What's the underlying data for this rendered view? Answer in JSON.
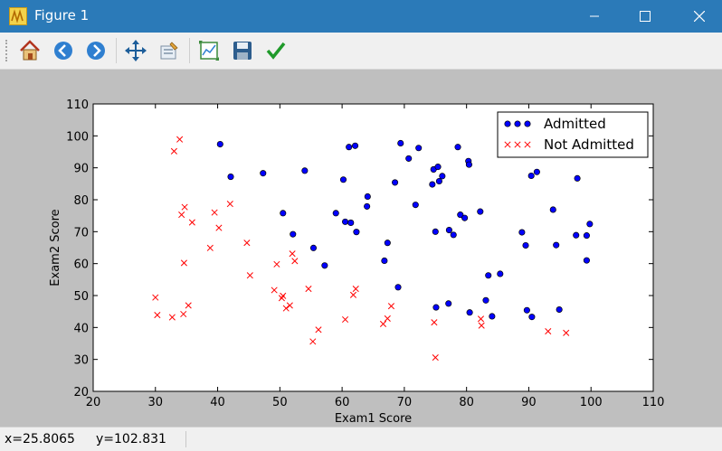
{
  "window": {
    "title": "Figure 1",
    "controls": [
      "minimize",
      "maximize",
      "close"
    ]
  },
  "toolbar": {
    "items": [
      {
        "name": "home-icon",
        "action": "Home"
      },
      {
        "name": "back-icon",
        "action": "Back"
      },
      {
        "name": "forward-icon",
        "action": "Forward"
      },
      {
        "name": "pan-icon",
        "action": "Pan"
      },
      {
        "name": "zoom-icon",
        "action": "Zoom"
      },
      {
        "name": "subplots-icon",
        "action": "Configure subplots"
      },
      {
        "name": "save-icon",
        "action": "Save"
      },
      {
        "name": "edit-icon",
        "action": "Edit axis"
      }
    ]
  },
  "status": {
    "x": "x=25.8065",
    "y": "y=102.831"
  },
  "colors": {
    "titlebar": "#2b7ab8",
    "admitted_fill": "#0000ff",
    "not_admitted": "#ff0000",
    "figure_bg": "#bfbfbf"
  },
  "chart_data": {
    "type": "scatter",
    "xlabel": "Exam1 Score",
    "ylabel": "Exam2 Score",
    "xlim": [
      20,
      110
    ],
    "ylim": [
      20,
      110
    ],
    "xticks": [
      20,
      30,
      40,
      50,
      60,
      70,
      80,
      90,
      100,
      110
    ],
    "yticks": [
      20,
      30,
      40,
      50,
      60,
      70,
      80,
      90,
      100,
      110
    ],
    "legend": {
      "position": "top-right"
    },
    "series": [
      {
        "name": "Admitted",
        "marker": "circle",
        "color": "#0000ff",
        "points": [
          [
            40.4,
            97.4
          ],
          [
            42.1,
            87.2
          ],
          [
            47.3,
            88.3
          ],
          [
            50.5,
            75.8
          ],
          [
            52.1,
            69.2
          ],
          [
            54.0,
            89.1
          ],
          [
            55.4,
            64.9
          ],
          [
            57.2,
            59.4
          ],
          [
            59.0,
            75.8
          ],
          [
            60.2,
            86.3
          ],
          [
            60.5,
            73.1
          ],
          [
            61.1,
            96.5
          ],
          [
            61.4,
            72.8
          ],
          [
            62.1,
            96.9
          ],
          [
            62.3,
            69.9
          ],
          [
            64.0,
            77.9
          ],
          [
            64.1,
            81.0
          ],
          [
            66.8,
            60.9
          ],
          [
            67.3,
            66.5
          ],
          [
            68.5,
            85.4
          ],
          [
            69.0,
            52.6
          ],
          [
            69.4,
            97.7
          ],
          [
            70.7,
            92.9
          ],
          [
            71.8,
            78.4
          ],
          [
            72.3,
            96.2
          ],
          [
            74.5,
            84.8
          ],
          [
            74.7,
            89.5
          ],
          [
            75.0,
            70.0
          ],
          [
            75.1,
            46.3
          ],
          [
            75.4,
            90.3
          ],
          [
            75.6,
            85.8
          ],
          [
            76.1,
            87.4
          ],
          [
            77.1,
            47.5
          ],
          [
            77.2,
            70.5
          ],
          [
            77.9,
            69.0
          ],
          [
            78.6,
            96.5
          ],
          [
            79.0,
            75.3
          ],
          [
            79.7,
            74.3
          ],
          [
            80.3,
            92.1
          ],
          [
            80.4,
            91.0
          ],
          [
            80.5,
            44.7
          ],
          [
            82.2,
            76.3
          ],
          [
            83.1,
            48.5
          ],
          [
            83.5,
            56.3
          ],
          [
            84.1,
            43.5
          ],
          [
            85.4,
            56.8
          ],
          [
            88.9,
            69.8
          ],
          [
            89.5,
            65.7
          ],
          [
            89.7,
            45.4
          ],
          [
            90.4,
            87.5
          ],
          [
            90.5,
            43.3
          ],
          [
            91.3,
            88.7
          ],
          [
            93.9,
            76.9
          ],
          [
            94.4,
            65.8
          ],
          [
            94.9,
            45.6
          ],
          [
            97.6,
            68.9
          ],
          [
            97.8,
            86.7
          ],
          [
            99.3,
            61.0
          ],
          [
            99.3,
            68.8
          ],
          [
            99.8,
            72.4
          ]
        ]
      },
      {
        "name": "Not Admitted",
        "marker": "x",
        "color": "#ff0000",
        "points": [
          [
            30.0,
            49.4
          ],
          [
            30.3,
            43.9
          ],
          [
            32.7,
            43.2
          ],
          [
            33.0,
            95.2
          ],
          [
            33.9,
            98.9
          ],
          [
            34.2,
            75.3
          ],
          [
            34.5,
            44.2
          ],
          [
            34.6,
            60.2
          ],
          [
            34.7,
            77.7
          ],
          [
            35.3,
            46.9
          ],
          [
            35.9,
            72.9
          ],
          [
            38.8,
            64.9
          ],
          [
            39.5,
            76.0
          ],
          [
            40.2,
            71.2
          ],
          [
            42.0,
            78.7
          ],
          [
            44.7,
            66.5
          ],
          [
            45.2,
            56.3
          ],
          [
            49.1,
            51.7
          ],
          [
            49.5,
            59.8
          ],
          [
            50.3,
            49.2
          ],
          [
            50.5,
            49.9
          ],
          [
            51.0,
            46.0
          ],
          [
            51.6,
            46.9
          ],
          [
            52.0,
            63.1
          ],
          [
            52.4,
            60.8
          ],
          [
            54.6,
            52.1
          ],
          [
            55.3,
            35.6
          ],
          [
            56.2,
            39.3
          ],
          [
            60.5,
            42.5
          ],
          [
            61.8,
            50.2
          ],
          [
            62.2,
            52.1
          ],
          [
            66.6,
            41.1
          ],
          [
            67.3,
            42.8
          ],
          [
            67.9,
            46.7
          ],
          [
            74.8,
            41.6
          ],
          [
            75.0,
            30.6
          ],
          [
            82.3,
            42.7
          ],
          [
            82.4,
            40.6
          ],
          [
            93.1,
            38.8
          ],
          [
            96.0,
            38.3
          ]
        ]
      }
    ]
  }
}
